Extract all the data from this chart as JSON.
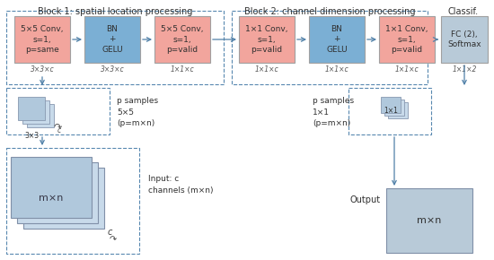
{
  "title_block1": "Block 1: spatial location processing",
  "title_block2": "Block 2: channel dimension processing",
  "title_classif": "Classif.",
  "box1_text": "5×5 Conv,\ns=1,\np=same",
  "box2_text": "BN\n+\nGELU",
  "box3_text": "5×5 Conv,\ns=1,\np=valid",
  "box4_text": "1×1 Conv,\ns=1,\np=valid",
  "box5_text": "BN\n+\nGELU",
  "box6_text": "1×1 Conv,\ns=1,\np=valid",
  "box7_text": "FC (2),\nSoftmax",
  "label1": "3×3×c",
  "label2": "3×3×c",
  "label3": "1×1×c",
  "label4": "1×1×c",
  "label5": "1×1×c",
  "label6": "1×1×c",
  "label7": "1×1×2",
  "samples_text1": "p samples\n5×5\n(p=m×n)",
  "samples_text2": "p samples\n1×1\n(p=m×n)",
  "input_text": "Input: c\nchannels (m×n)",
  "output_text": "Output",
  "mxn_text": "m×n",
  "mxn_text2": "m×n",
  "patch_text": "3×3",
  "patch_text2": "1×1",
  "color_pink": "#f2a59d",
  "color_blue": "#7bafd4",
  "color_gray": "#b8cad8",
  "color_arrow": "#5080a8",
  "color_dashed": "#6090b8",
  "color_stack_light": "#c8daea",
  "color_stack_mid": "#b0c8dc",
  "color_output": "#b8cad8",
  "bg_color": "#ffffff"
}
